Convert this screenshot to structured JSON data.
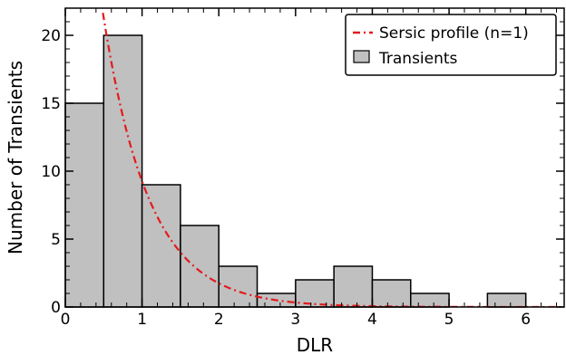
{
  "chart_data": {
    "type": "bar",
    "xlabel": "DLR",
    "ylabel": "Number of Transients",
    "xlim": [
      0,
      6.5
    ],
    "ylim": [
      0,
      22
    ],
    "xticks": [
      0,
      1,
      2,
      3,
      4,
      5,
      6
    ],
    "yticks": [
      0,
      5,
      10,
      15,
      20
    ],
    "bin_width": 0.5,
    "bins": [
      {
        "x0": 0.0,
        "count": 15
      },
      {
        "x0": 0.5,
        "count": 20
      },
      {
        "x0": 1.0,
        "count": 9
      },
      {
        "x0": 1.5,
        "count": 6
      },
      {
        "x0": 2.0,
        "count": 3
      },
      {
        "x0": 2.5,
        "count": 1
      },
      {
        "x0": 3.0,
        "count": 2
      },
      {
        "x0": 3.5,
        "count": 3
      },
      {
        "x0": 4.0,
        "count": 2
      },
      {
        "x0": 4.5,
        "count": 1
      },
      {
        "x0": 5.0,
        "count": 0
      },
      {
        "x0": 5.5,
        "count": 1
      },
      {
        "x0": 6.0,
        "count": 0
      }
    ],
    "series": [
      {
        "name": "Transients",
        "kind": "histogram",
        "color": "#c0c0c0"
      },
      {
        "name": "Sersic profile (n=1)",
        "kind": "curve",
        "color": "#e41a1c",
        "model": "exponential",
        "amplitude": 49.0,
        "scale": 0.6,
        "line_style": "dash-dot"
      }
    ],
    "legend": {
      "placement": "top-right",
      "entries": [
        "Sersic profile (n=1)",
        "Transients"
      ]
    },
    "grid": false
  }
}
